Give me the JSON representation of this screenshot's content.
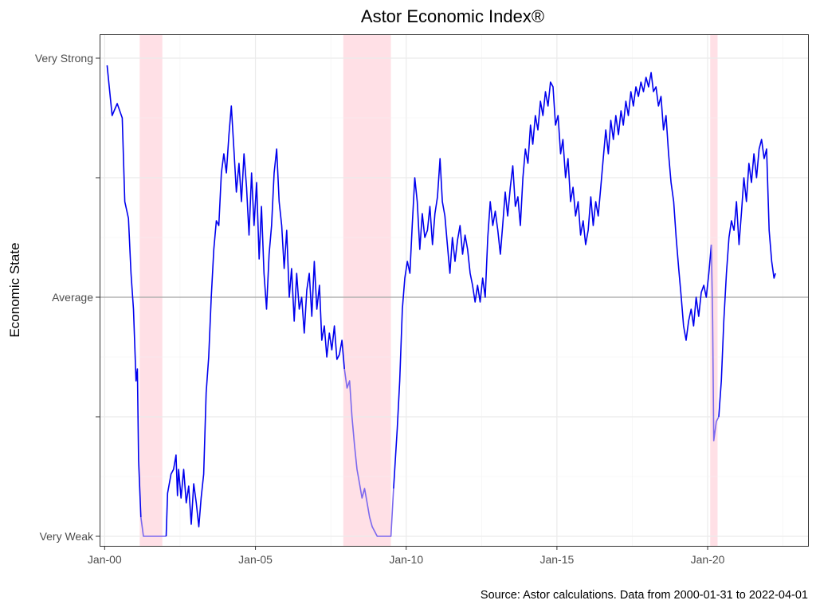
{
  "chart_data": {
    "type": "line",
    "title": "Astor Economic Index®",
    "ylabel": "Economic State",
    "xlabel": "",
    "caption": "Source: Astor calculations. Data from 2000-01-31 to 2022-04-01",
    "xlim": [
      "1999-11-01",
      "2023-05-01"
    ],
    "ylim": [
      -1.04,
      1.1
    ],
    "x_ticks": [
      {
        "label": "Jan-00",
        "date": "2000-01-01"
      },
      {
        "label": "Jan-05",
        "date": "2005-01-01"
      },
      {
        "label": "Jan-10",
        "date": "2010-01-01"
      },
      {
        "label": "Jan-15",
        "date": "2015-01-01"
      },
      {
        "label": "Jan-20",
        "date": "2020-01-01"
      }
    ],
    "y_ticks": [
      {
        "label": "Very Strong",
        "value": 1
      },
      {
        "label": "",
        "value": 0.5
      },
      {
        "label": "Average",
        "value": 0
      },
      {
        "label": "",
        "value": -0.5
      },
      {
        "label": "Very Weak",
        "value": -1
      }
    ],
    "reference_line": {
      "value": 0,
      "color": "#a6a6a6"
    },
    "grid": true,
    "recession_bands": [
      {
        "start": "2001-03-01",
        "end": "2001-11-30"
      },
      {
        "start": "2007-12-01",
        "end": "2009-06-30"
      },
      {
        "start": "2020-02-01",
        "end": "2020-04-30"
      }
    ],
    "colors": {
      "line": "#0000ee",
      "line_in_recession": "#7b68ee",
      "recession_band": "#ffe0e6"
    },
    "series": [
      {
        "values": [
          [
            "2000-01-31",
            0.97
          ],
          [
            "2000-04-01",
            0.76
          ],
          [
            "2000-06-01",
            0.81
          ],
          [
            "2000-08-01",
            0.75
          ],
          [
            "2000-09-01",
            0.4
          ],
          [
            "2000-10-15",
            0.33
          ],
          [
            "2000-11-15",
            0.1
          ],
          [
            "2000-12-15",
            -0.05
          ],
          [
            "2001-01-15",
            -0.35
          ],
          [
            "2001-02-01",
            -0.3
          ],
          [
            "2001-02-15",
            -0.68
          ],
          [
            "2001-03-15",
            -0.92
          ],
          [
            "2001-04-15",
            -1.0
          ],
          [
            "2001-11-30",
            -1.0
          ],
          [
            "2002-01-15",
            -1.0
          ],
          [
            "2002-02-01",
            -0.82
          ],
          [
            "2002-03-15",
            -0.74
          ],
          [
            "2002-04-15",
            -0.72
          ],
          [
            "2002-05-15",
            -0.66
          ],
          [
            "2002-06-01",
            -0.83
          ],
          [
            "2002-06-15",
            -0.72
          ],
          [
            "2002-07-15",
            -0.84
          ],
          [
            "2002-08-15",
            -0.72
          ],
          [
            "2002-09-15",
            -0.86
          ],
          [
            "2002-10-15",
            -0.79
          ],
          [
            "2002-11-15",
            -0.95
          ],
          [
            "2002-12-15",
            -0.78
          ],
          [
            "2003-01-15",
            -0.86
          ],
          [
            "2003-02-15",
            -0.96
          ],
          [
            "2003-03-15",
            -0.84
          ],
          [
            "2003-04-15",
            -0.74
          ],
          [
            "2003-05-15",
            -0.4
          ],
          [
            "2003-06-15",
            -0.25
          ],
          [
            "2003-07-15",
            0.0
          ],
          [
            "2003-08-15",
            0.2
          ],
          [
            "2003-09-15",
            0.32
          ],
          [
            "2003-10-15",
            0.3
          ],
          [
            "2003-11-15",
            0.52
          ],
          [
            "2003-12-15",
            0.6
          ],
          [
            "2004-01-15",
            0.52
          ],
          [
            "2004-02-15",
            0.68
          ],
          [
            "2004-03-15",
            0.8
          ],
          [
            "2004-04-15",
            0.62
          ],
          [
            "2004-05-15",
            0.44
          ],
          [
            "2004-06-15",
            0.56
          ],
          [
            "2004-07-15",
            0.4
          ],
          [
            "2004-08-15",
            0.6
          ],
          [
            "2004-09-15",
            0.46
          ],
          [
            "2004-10-15",
            0.26
          ],
          [
            "2004-11-15",
            0.52
          ],
          [
            "2004-12-15",
            0.3
          ],
          [
            "2005-01-15",
            0.48
          ],
          [
            "2005-02-15",
            0.16
          ],
          [
            "2005-03-15",
            0.38
          ],
          [
            "2005-04-15",
            0.1
          ],
          [
            "2005-05-15",
            -0.05
          ],
          [
            "2005-06-15",
            0.18
          ],
          [
            "2005-07-15",
            0.3
          ],
          [
            "2005-08-15",
            0.52
          ],
          [
            "2005-09-15",
            0.62
          ],
          [
            "2005-10-15",
            0.4
          ],
          [
            "2005-11-15",
            0.3
          ],
          [
            "2005-12-15",
            0.12
          ],
          [
            "2006-01-15",
            0.28
          ],
          [
            "2006-02-15",
            0.0
          ],
          [
            "2006-03-15",
            0.12
          ],
          [
            "2006-04-15",
            -0.1
          ],
          [
            "2006-05-15",
            0.1
          ],
          [
            "2006-06-15",
            -0.05
          ],
          [
            "2006-07-15",
            0.0
          ],
          [
            "2006-08-15",
            -0.15
          ],
          [
            "2006-09-15",
            0.03
          ],
          [
            "2006-10-15",
            0.1
          ],
          [
            "2006-11-15",
            -0.08
          ],
          [
            "2006-12-15",
            0.15
          ],
          [
            "2007-01-15",
            -0.05
          ],
          [
            "2007-02-15",
            0.05
          ],
          [
            "2007-03-15",
            -0.18
          ],
          [
            "2007-04-15",
            -0.12
          ],
          [
            "2007-05-15",
            -0.25
          ],
          [
            "2007-06-15",
            -0.15
          ],
          [
            "2007-07-15",
            -0.22
          ],
          [
            "2007-08-15",
            -0.12
          ],
          [
            "2007-09-15",
            -0.26
          ],
          [
            "2007-10-15",
            -0.24
          ],
          [
            "2007-11-15",
            -0.18
          ],
          [
            "2007-12-15",
            -0.3
          ],
          [
            "2008-01-15",
            -0.38
          ],
          [
            "2008-02-15",
            -0.35
          ],
          [
            "2008-03-15",
            -0.5
          ],
          [
            "2008-04-15",
            -0.62
          ],
          [
            "2008-05-15",
            -0.72
          ],
          [
            "2008-06-15",
            -0.78
          ],
          [
            "2008-07-15",
            -0.84
          ],
          [
            "2008-08-15",
            -0.8
          ],
          [
            "2008-09-15",
            -0.86
          ],
          [
            "2008-10-15",
            -0.92
          ],
          [
            "2008-11-15",
            -0.96
          ],
          [
            "2009-01-15",
            -1.0
          ],
          [
            "2009-06-30",
            -1.0
          ],
          [
            "2009-08-01",
            -0.8
          ],
          [
            "2009-09-15",
            -0.55
          ],
          [
            "2009-10-15",
            -0.35
          ],
          [
            "2009-11-15",
            -0.05
          ],
          [
            "2009-12-15",
            0.08
          ],
          [
            "2010-01-15",
            0.15
          ],
          [
            "2010-02-15",
            0.1
          ],
          [
            "2010-03-15",
            0.3
          ],
          [
            "2010-04-15",
            0.5
          ],
          [
            "2010-05-15",
            0.4
          ],
          [
            "2010-06-15",
            0.2
          ],
          [
            "2010-07-15",
            0.35
          ],
          [
            "2010-08-15",
            0.25
          ],
          [
            "2010-09-15",
            0.28
          ],
          [
            "2010-10-15",
            0.38
          ],
          [
            "2010-11-15",
            0.22
          ],
          [
            "2010-12-15",
            0.35
          ],
          [
            "2011-01-15",
            0.42
          ],
          [
            "2011-02-15",
            0.58
          ],
          [
            "2011-03-15",
            0.4
          ],
          [
            "2011-04-15",
            0.34
          ],
          [
            "2011-05-15",
            0.22
          ],
          [
            "2011-06-15",
            0.1
          ],
          [
            "2011-07-15",
            0.25
          ],
          [
            "2011-08-15",
            0.15
          ],
          [
            "2011-09-15",
            0.24
          ],
          [
            "2011-10-15",
            0.3
          ],
          [
            "2011-11-15",
            0.18
          ],
          [
            "2011-12-15",
            0.26
          ],
          [
            "2012-01-15",
            0.2
          ],
          [
            "2012-02-15",
            0.1
          ],
          [
            "2012-03-15",
            0.05
          ],
          [
            "2012-04-15",
            -0.02
          ],
          [
            "2012-05-15",
            0.05
          ],
          [
            "2012-06-15",
            -0.02
          ],
          [
            "2012-07-15",
            0.08
          ],
          [
            "2012-08-15",
            0.0
          ],
          [
            "2012-09-15",
            0.25
          ],
          [
            "2012-10-15",
            0.4
          ],
          [
            "2012-11-15",
            0.3
          ],
          [
            "2012-12-15",
            0.36
          ],
          [
            "2013-01-15",
            0.28
          ],
          [
            "2013-02-15",
            0.18
          ],
          [
            "2013-03-15",
            0.3
          ],
          [
            "2013-04-15",
            0.44
          ],
          [
            "2013-05-15",
            0.34
          ],
          [
            "2013-06-15",
            0.46
          ],
          [
            "2013-07-15",
            0.55
          ],
          [
            "2013-08-15",
            0.38
          ],
          [
            "2013-09-15",
            0.42
          ],
          [
            "2013-10-15",
            0.3
          ],
          [
            "2013-11-15",
            0.5
          ],
          [
            "2013-12-15",
            0.62
          ],
          [
            "2014-01-15",
            0.56
          ],
          [
            "2014-02-15",
            0.72
          ],
          [
            "2014-03-15",
            0.64
          ],
          [
            "2014-04-15",
            0.76
          ],
          [
            "2014-05-15",
            0.7
          ],
          [
            "2014-06-15",
            0.82
          ],
          [
            "2014-07-15",
            0.76
          ],
          [
            "2014-08-15",
            0.86
          ],
          [
            "2014-09-15",
            0.8
          ],
          [
            "2014-10-15",
            0.9
          ],
          [
            "2014-11-15",
            0.88
          ],
          [
            "2014-12-15",
            0.72
          ],
          [
            "2015-01-15",
            0.76
          ],
          [
            "2015-02-15",
            0.6
          ],
          [
            "2015-03-15",
            0.66
          ],
          [
            "2015-04-15",
            0.5
          ],
          [
            "2015-05-15",
            0.58
          ],
          [
            "2015-06-15",
            0.4
          ],
          [
            "2015-07-15",
            0.46
          ],
          [
            "2015-08-15",
            0.34
          ],
          [
            "2015-09-15",
            0.4
          ],
          [
            "2015-10-15",
            0.26
          ],
          [
            "2015-11-15",
            0.32
          ],
          [
            "2015-12-15",
            0.22
          ],
          [
            "2016-01-15",
            0.28
          ],
          [
            "2016-02-15",
            0.42
          ],
          [
            "2016-03-15",
            0.3
          ],
          [
            "2016-04-15",
            0.4
          ],
          [
            "2016-05-15",
            0.34
          ],
          [
            "2016-06-15",
            0.46
          ],
          [
            "2016-07-15",
            0.58
          ],
          [
            "2016-08-15",
            0.7
          ],
          [
            "2016-09-15",
            0.6
          ],
          [
            "2016-10-15",
            0.74
          ],
          [
            "2016-11-15",
            0.66
          ],
          [
            "2016-12-15",
            0.76
          ],
          [
            "2017-01-15",
            0.68
          ],
          [
            "2017-02-15",
            0.78
          ],
          [
            "2017-03-15",
            0.72
          ],
          [
            "2017-04-15",
            0.82
          ],
          [
            "2017-05-15",
            0.76
          ],
          [
            "2017-06-15",
            0.86
          ],
          [
            "2017-07-15",
            0.8
          ],
          [
            "2017-08-15",
            0.88
          ],
          [
            "2017-09-15",
            0.84
          ],
          [
            "2017-10-15",
            0.9
          ],
          [
            "2017-11-15",
            0.86
          ],
          [
            "2017-12-15",
            0.92
          ],
          [
            "2018-01-15",
            0.88
          ],
          [
            "2018-02-15",
            0.94
          ],
          [
            "2018-03-15",
            0.86
          ],
          [
            "2018-04-15",
            0.88
          ],
          [
            "2018-05-15",
            0.8
          ],
          [
            "2018-06-15",
            0.84
          ],
          [
            "2018-07-15",
            0.7
          ],
          [
            "2018-08-15",
            0.76
          ],
          [
            "2018-09-15",
            0.6
          ],
          [
            "2018-10-15",
            0.48
          ],
          [
            "2018-11-15",
            0.4
          ],
          [
            "2018-12-15",
            0.25
          ],
          [
            "2019-01-15",
            0.12
          ],
          [
            "2019-02-15",
            0.0
          ],
          [
            "2019-03-15",
            -0.12
          ],
          [
            "2019-04-15",
            -0.18
          ],
          [
            "2019-05-15",
            -0.1
          ],
          [
            "2019-06-15",
            -0.05
          ],
          [
            "2019-07-15",
            -0.12
          ],
          [
            "2019-08-15",
            0.0
          ],
          [
            "2019-09-15",
            -0.08
          ],
          [
            "2019-10-15",
            0.02
          ],
          [
            "2019-11-15",
            0.05
          ],
          [
            "2019-12-15",
            0.0
          ],
          [
            "2020-01-15",
            0.1
          ],
          [
            "2020-02-15",
            0.22
          ],
          [
            "2020-03-01",
            -0.1
          ],
          [
            "2020-03-15",
            -0.6
          ],
          [
            "2020-04-15",
            -0.52
          ],
          [
            "2020-05-15",
            -0.5
          ],
          [
            "2020-06-15",
            -0.35
          ],
          [
            "2020-07-15",
            -0.1
          ],
          [
            "2020-08-15",
            0.1
          ],
          [
            "2020-09-15",
            0.25
          ],
          [
            "2020-10-15",
            0.32
          ],
          [
            "2020-11-15",
            0.28
          ],
          [
            "2020-12-15",
            0.4
          ],
          [
            "2021-01-15",
            0.22
          ],
          [
            "2021-02-15",
            0.36
          ],
          [
            "2021-03-15",
            0.5
          ],
          [
            "2021-04-15",
            0.4
          ],
          [
            "2021-05-15",
            0.56
          ],
          [
            "2021-06-15",
            0.48
          ],
          [
            "2021-07-15",
            0.6
          ],
          [
            "2021-08-15",
            0.5
          ],
          [
            "2021-09-15",
            0.62
          ],
          [
            "2021-10-15",
            0.66
          ],
          [
            "2021-11-15",
            0.58
          ],
          [
            "2021-12-15",
            0.62
          ],
          [
            "2022-01-15",
            0.28
          ],
          [
            "2022-02-15",
            0.15
          ],
          [
            "2022-03-15",
            0.08
          ],
          [
            "2022-04-01",
            0.1
          ]
        ]
      }
    ]
  }
}
